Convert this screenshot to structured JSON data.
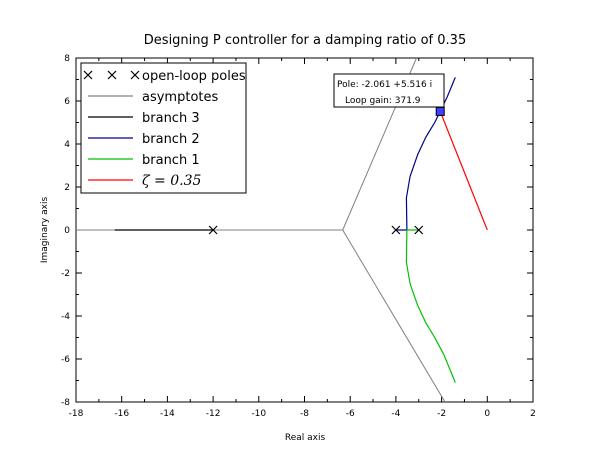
{
  "chart_data": {
    "type": "line",
    "title": "Designing P controller for a damping ratio of 0.35",
    "xlabel": "Real axis",
    "ylabel": "Imaginary axis",
    "xlim": [
      -18,
      2
    ],
    "ylim": [
      -8,
      8
    ],
    "xticks": [
      "-18",
      "-16",
      "-14",
      "-12",
      "-10",
      "-8",
      "-6",
      "-4",
      "-2",
      "0",
      "2"
    ],
    "yticks": [
      "-8",
      "-6",
      "-4",
      "-2",
      "0",
      "2",
      "4",
      "6",
      "8"
    ],
    "grid": false,
    "legend_position": "top-left",
    "open_loop_poles": {
      "name": "open-loop poles",
      "x": [
        -12,
        -4,
        -3
      ],
      "y": [
        0,
        0,
        0
      ],
      "color": "#000000"
    },
    "asymptotes": {
      "name": "asymptotes",
      "color": "#808080",
      "lines": [
        {
          "x": [
            -18,
            -6.33
          ],
          "y": [
            0,
            0
          ]
        },
        {
          "x": [
            -6.33,
            -3.1
          ],
          "y": [
            0,
            8
          ]
        },
        {
          "x": [
            -6.33,
            -1.85
          ],
          "y": [
            0,
            -8
          ]
        }
      ]
    },
    "series": [
      {
        "name": "branch 3",
        "color": "#000000",
        "x": [
          -16.3,
          -12
        ],
        "y": [
          0,
          0
        ]
      },
      {
        "name": "branch 2",
        "color": "#00008b",
        "x": [
          -4,
          -3.52,
          -3.54,
          -3.38,
          -3.05,
          -2.7,
          -2.3,
          -2.061,
          -1.75,
          -1.4
        ],
        "y": [
          0,
          0,
          1.5,
          2.5,
          3.5,
          4.3,
          5.0,
          5.516,
          6.2,
          7.1
        ]
      },
      {
        "name": "branch 1",
        "color": "#00c000",
        "x": [
          -3,
          -3.52,
          -3.54,
          -3.38,
          -3.05,
          -2.7,
          -2.3,
          -1.9,
          -1.4
        ],
        "y": [
          0,
          0,
          -1.5,
          -2.5,
          -3.5,
          -4.3,
          -5.0,
          -5.8,
          -7.1
        ]
      },
      {
        "name": "ζ = 0.35",
        "color": "#ff0000",
        "x": [
          0,
          -2.061
        ],
        "y": [
          0,
          5.516
        ]
      }
    ],
    "legend": [
      {
        "label": "open-loop poles",
        "kind": "marker",
        "color": "#000000"
      },
      {
        "label": "asymptotes",
        "kind": "line",
        "color": "#808080"
      },
      {
        "label": "branch 3",
        "kind": "line",
        "color": "#000000"
      },
      {
        "label": "branch 2",
        "kind": "line",
        "color": "#00008b"
      },
      {
        "label": "branch 1",
        "kind": "line",
        "color": "#00c000"
      },
      {
        "label": "ζ = 0.35",
        "kind": "line",
        "color": "#ff0000"
      }
    ],
    "datatip": {
      "x": -2.061,
      "y": 5.516,
      "line1": "Pole: -2.061 +5.516 i",
      "line2": "Loop gain: 371.9",
      "marker_color": "#4040ff"
    }
  }
}
